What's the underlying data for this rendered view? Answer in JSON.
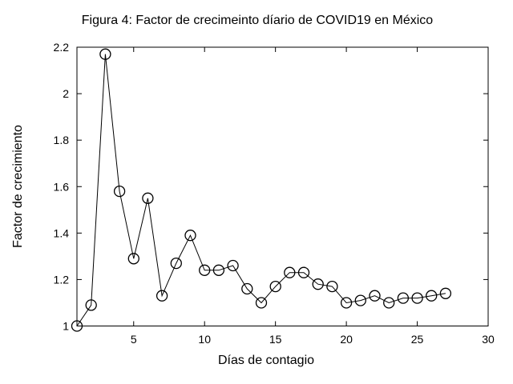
{
  "figure": {
    "background_color": "#ffffff",
    "foreground_color": "#000000"
  },
  "chart_data": {
    "type": "line",
    "title": "Figura 4: Factor de crecimeinto díario de COVID19 en México",
    "xlabel": "Días de contagio",
    "ylabel": "Factor de crecimiento",
    "marker": "open-circle",
    "line_color": "#000000",
    "marker_color": "#000000",
    "grid": false,
    "legend": null,
    "xlim": [
      1,
      30
    ],
    "ylim": [
      1,
      2.2
    ],
    "x_ticks": [
      5,
      10,
      15,
      20,
      25,
      30
    ],
    "x_tick_labels": [
      "5",
      "10",
      "15",
      "20",
      "25",
      "30"
    ],
    "y_ticks": [
      1,
      1.2,
      1.4,
      1.6,
      1.8,
      2,
      2.2
    ],
    "y_tick_labels": [
      "1",
      "1.2",
      "1.4",
      "1.6",
      "1.8",
      "2",
      "2.2"
    ],
    "x": [
      1,
      2,
      3,
      4,
      5,
      6,
      7,
      8,
      9,
      10,
      11,
      12,
      13,
      14,
      15,
      16,
      17,
      18,
      19,
      20,
      21,
      22,
      23,
      24,
      25,
      26,
      27
    ],
    "y": [
      1.0,
      1.09,
      2.17,
      1.58,
      1.29,
      1.55,
      1.13,
      1.27,
      1.39,
      1.24,
      1.24,
      1.26,
      1.16,
      1.1,
      1.17,
      1.23,
      1.23,
      1.18,
      1.17,
      1.1,
      1.11,
      1.13,
      1.1,
      1.12,
      1.12,
      1.13,
      1.14
    ]
  }
}
